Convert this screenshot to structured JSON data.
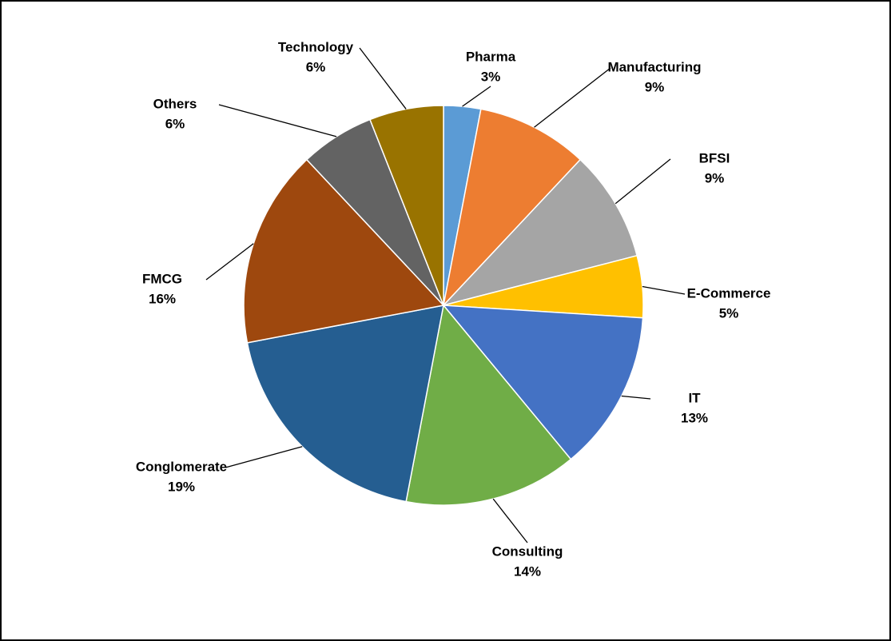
{
  "chart_data": {
    "type": "pie",
    "categories": [
      "Pharma",
      "Manufacturing",
      "BFSI",
      "E-Commerce",
      "IT",
      "Consulting",
      "Conglomerate",
      "FMCG",
      "Others",
      "Technology"
    ],
    "values": [
      3,
      9,
      9,
      5,
      13,
      14,
      19,
      16,
      6,
      6
    ],
    "value_labels": [
      "3%",
      "9%",
      "9%",
      "5%",
      "13%",
      "14%",
      "19%",
      "16%",
      "6%",
      "6%"
    ],
    "colors": [
      "#5b9bd5",
      "#ed7d31",
      "#a5a5a5",
      "#ffc000",
      "#4472c4",
      "#70ad47",
      "#255e91",
      "#9e480e",
      "#636363",
      "#997300"
    ]
  }
}
